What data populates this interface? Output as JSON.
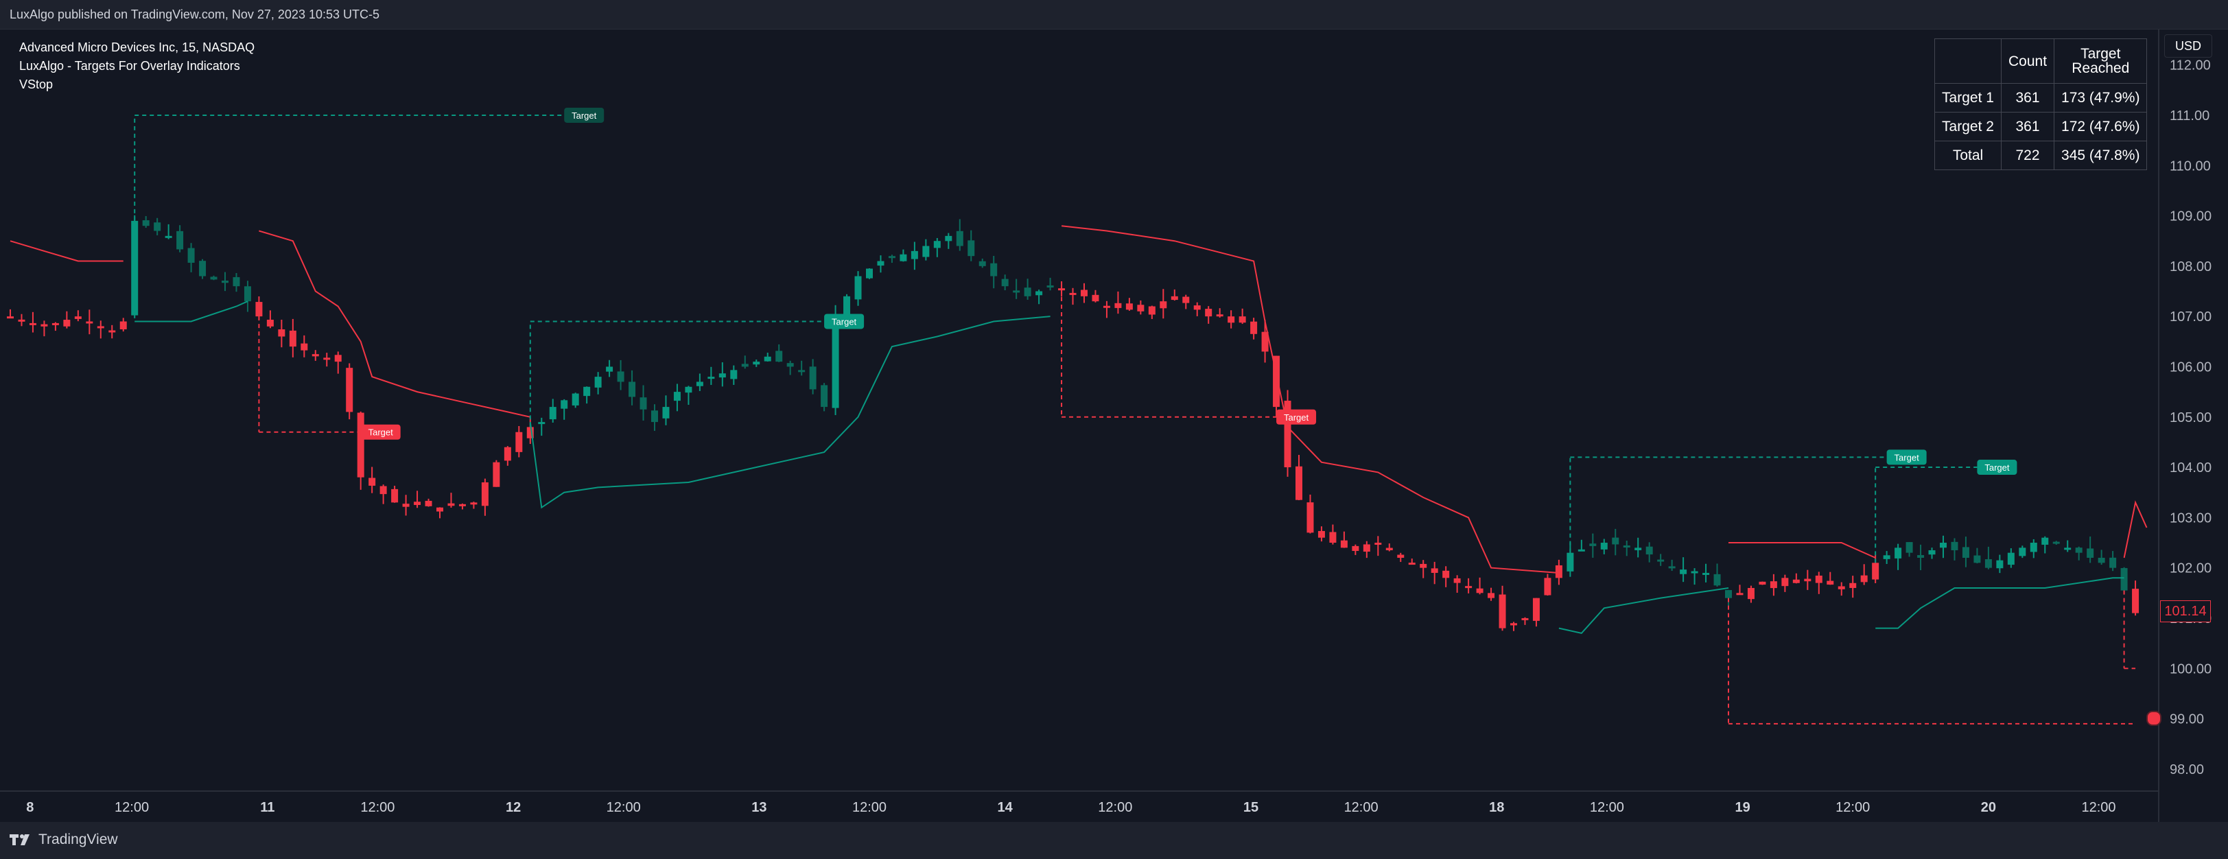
{
  "header": {
    "published": "LuxAlgo published on TradingView.com, Nov 27, 2023 10:53 UTC-5"
  },
  "legend": {
    "symbol": "Advanced Micro Devices Inc, 15, NASDAQ",
    "indicator": "LuxAlgo - Targets For Overlay Indicators",
    "overlay": "VStop"
  },
  "currency": "USD",
  "last_price": "101.14",
  "stats_table": {
    "headers": [
      "",
      "Count",
      "Target\nReached"
    ],
    "rows": [
      [
        "Target 1",
        "361",
        "173 (47.9%)"
      ],
      [
        "Target 2",
        "361",
        "172 (47.6%)"
      ],
      [
        "Total",
        "722",
        "345 (47.8%)"
      ]
    ]
  },
  "target_label": "Target",
  "footer": {
    "brand": "TradingView"
  },
  "colors": {
    "bull": "#089981",
    "bear": "#f23645",
    "white_candle": "#ffffff",
    "gray_candle": "#9598a1"
  },
  "chart_data": {
    "type": "candlestick",
    "y_ticks": [
      "112.00",
      "111.00",
      "110.00",
      "109.00",
      "108.00",
      "107.00",
      "106.00",
      "105.00",
      "104.00",
      "103.00",
      "102.00",
      "101.00",
      "100.00",
      "99.00",
      "98.00"
    ],
    "x_ticks": [
      "8",
      "12:00",
      "11",
      "12:00",
      "12",
      "12:00",
      "13",
      "12:00",
      "14",
      "12:00",
      "15",
      "12:00",
      "18",
      "12:00",
      "19",
      "12:00",
      "20",
      "12:00"
    ],
    "ylim": [
      97.5,
      112.5
    ],
    "grid": false,
    "close_path": [
      [
        0,
        107.0
      ],
      [
        3,
        106.8
      ],
      [
        6,
        107.0
      ],
      [
        9,
        106.7
      ],
      [
        10,
        106.9
      ],
      [
        11,
        108.9
      ],
      [
        14,
        108.6
      ],
      [
        17,
        107.8
      ],
      [
        20,
        107.6
      ],
      [
        21,
        107.3
      ],
      [
        22,
        107.0
      ],
      [
        25,
        106.4
      ],
      [
        29,
        106.1
      ],
      [
        30,
        105.1
      ],
      [
        31,
        103.8
      ],
      [
        34,
        103.3
      ],
      [
        38,
        103.2
      ],
      [
        41,
        103.3
      ],
      [
        43,
        104.1
      ],
      [
        45,
        104.7
      ],
      [
        47,
        104.9
      ],
      [
        48,
        105.2
      ],
      [
        51,
        105.6
      ],
      [
        53,
        106.0
      ],
      [
        55,
        105.4
      ],
      [
        57,
        104.9
      ],
      [
        59,
        105.5
      ],
      [
        62,
        105.8
      ],
      [
        65,
        106.0
      ],
      [
        67,
        106.2
      ],
      [
        70,
        105.9
      ],
      [
        72,
        105.2
      ],
      [
        73,
        107.0
      ],
      [
        75,
        107.8
      ],
      [
        77,
        108.1
      ],
      [
        80,
        108.3
      ],
      [
        83,
        108.6
      ],
      [
        86,
        108.0
      ],
      [
        88,
        107.6
      ],
      [
        90,
        107.4
      ],
      [
        92,
        107.6
      ],
      [
        95,
        107.4
      ],
      [
        97,
        107.2
      ],
      [
        100,
        107.1
      ],
      [
        103,
        107.4
      ],
      [
        106,
        107.0
      ],
      [
        109,
        107.0
      ],
      [
        111,
        106.3
      ],
      [
        112,
        105.2
      ],
      [
        113,
        104.0
      ],
      [
        115,
        102.7
      ],
      [
        118,
        102.4
      ],
      [
        121,
        102.5
      ],
      [
        123,
        102.2
      ],
      [
        126,
        101.9
      ],
      [
        129,
        101.6
      ],
      [
        131,
        101.4
      ],
      [
        132,
        100.8
      ],
      [
        134,
        101.0
      ],
      [
        136,
        101.8
      ],
      [
        138,
        102.3
      ],
      [
        141,
        102.5
      ],
      [
        144,
        102.4
      ],
      [
        147,
        102.0
      ],
      [
        150,
        101.9
      ],
      [
        152,
        101.4
      ],
      [
        154,
        101.6
      ],
      [
        157,
        101.8
      ],
      [
        160,
        101.7
      ],
      [
        163,
        101.6
      ],
      [
        165,
        102.1
      ],
      [
        167,
        102.4
      ],
      [
        169,
        102.2
      ],
      [
        171,
        102.5
      ],
      [
        173,
        102.2
      ],
      [
        175,
        102.0
      ],
      [
        177,
        102.3
      ],
      [
        180,
        102.6
      ],
      [
        183,
        102.3
      ],
      [
        186,
        102.0
      ],
      [
        188,
        101.1
      ]
    ],
    "vstop_segments": [
      {
        "trend": "bear",
        "points": [
          [
            0,
            108.5
          ],
          [
            3,
            108.3
          ],
          [
            6,
            108.1
          ],
          [
            10,
            108.1
          ]
        ]
      },
      {
        "trend": "bull",
        "points": [
          [
            11,
            106.9
          ],
          [
            16,
            106.9
          ],
          [
            20,
            107.2
          ],
          [
            21,
            107.3
          ]
        ]
      },
      {
        "trend": "bear",
        "points": [
          [
            22,
            108.7
          ],
          [
            25,
            108.5
          ],
          [
            27,
            107.5
          ],
          [
            29,
            107.2
          ],
          [
            31,
            106.5
          ],
          [
            32,
            105.8
          ],
          [
            36,
            105.5
          ],
          [
            40,
            105.3
          ],
          [
            44,
            105.1
          ],
          [
            46,
            105.0
          ]
        ]
      },
      {
        "trend": "bull",
        "points": [
          [
            46,
            104.9
          ],
          [
            47,
            103.2
          ],
          [
            49,
            103.5
          ],
          [
            52,
            103.6
          ],
          [
            60,
            103.7
          ],
          [
            66,
            104.0
          ],
          [
            72,
            104.3
          ],
          [
            75,
            105.0
          ],
          [
            78,
            106.4
          ],
          [
            82,
            106.6
          ],
          [
            87,
            106.9
          ],
          [
            92,
            107.0
          ],
          [
            92,
            107.0
          ]
        ]
      },
      {
        "trend": "bear",
        "points": [
          [
            93,
            108.8
          ],
          [
            97,
            108.7
          ],
          [
            103,
            108.5
          ],
          [
            110,
            108.1
          ],
          [
            111,
            106.9
          ],
          [
            113,
            104.8
          ],
          [
            116,
            104.1
          ],
          [
            121,
            103.9
          ],
          [
            125,
            103.4
          ],
          [
            129,
            103.0
          ],
          [
            131,
            102.0
          ],
          [
            137,
            101.9
          ]
        ]
      },
      {
        "trend": "bull",
        "points": [
          [
            137,
            100.8
          ],
          [
            139,
            100.7
          ],
          [
            141,
            101.2
          ],
          [
            146,
            101.4
          ],
          [
            152,
            101.6
          ],
          [
            152,
            101.6
          ]
        ]
      },
      {
        "trend": "bear",
        "points": [
          [
            152,
            102.5
          ],
          [
            157,
            102.5
          ],
          [
            162,
            102.5
          ],
          [
            165,
            102.2
          ]
        ]
      },
      {
        "trend": "bull",
        "points": [
          [
            165,
            100.8
          ],
          [
            167,
            100.8
          ],
          [
            169,
            101.2
          ],
          [
            172,
            101.6
          ],
          [
            180,
            101.6
          ],
          [
            186,
            101.8
          ],
          [
            187,
            101.8
          ]
        ]
      },
      {
        "trend": "bear",
        "points": [
          [
            187,
            102.2
          ],
          [
            188,
            103.3
          ],
          [
            189,
            102.8
          ]
        ]
      }
    ],
    "targets": [
      {
        "trend": "bull",
        "start": 11,
        "end": 49,
        "level": 111.0
      },
      {
        "trend": "bear",
        "start": 22,
        "end": 31,
        "level": 104.7
      },
      {
        "trend": "bull",
        "start": 46,
        "end": 72,
        "level": 106.9
      },
      {
        "trend": "bear",
        "start": 93,
        "end": 112,
        "level": 105.0
      },
      {
        "trend": "bull",
        "start": 138,
        "end": 166,
        "level": 104.2
      },
      {
        "trend": "bear",
        "start": 152,
        "end": 188,
        "level": 98.9
      },
      {
        "trend": "bull",
        "start": 165,
        "end": 174,
        "level": 104.0
      },
      {
        "trend": "bear",
        "start": 187,
        "end": 188,
        "level": 100.0
      }
    ]
  }
}
